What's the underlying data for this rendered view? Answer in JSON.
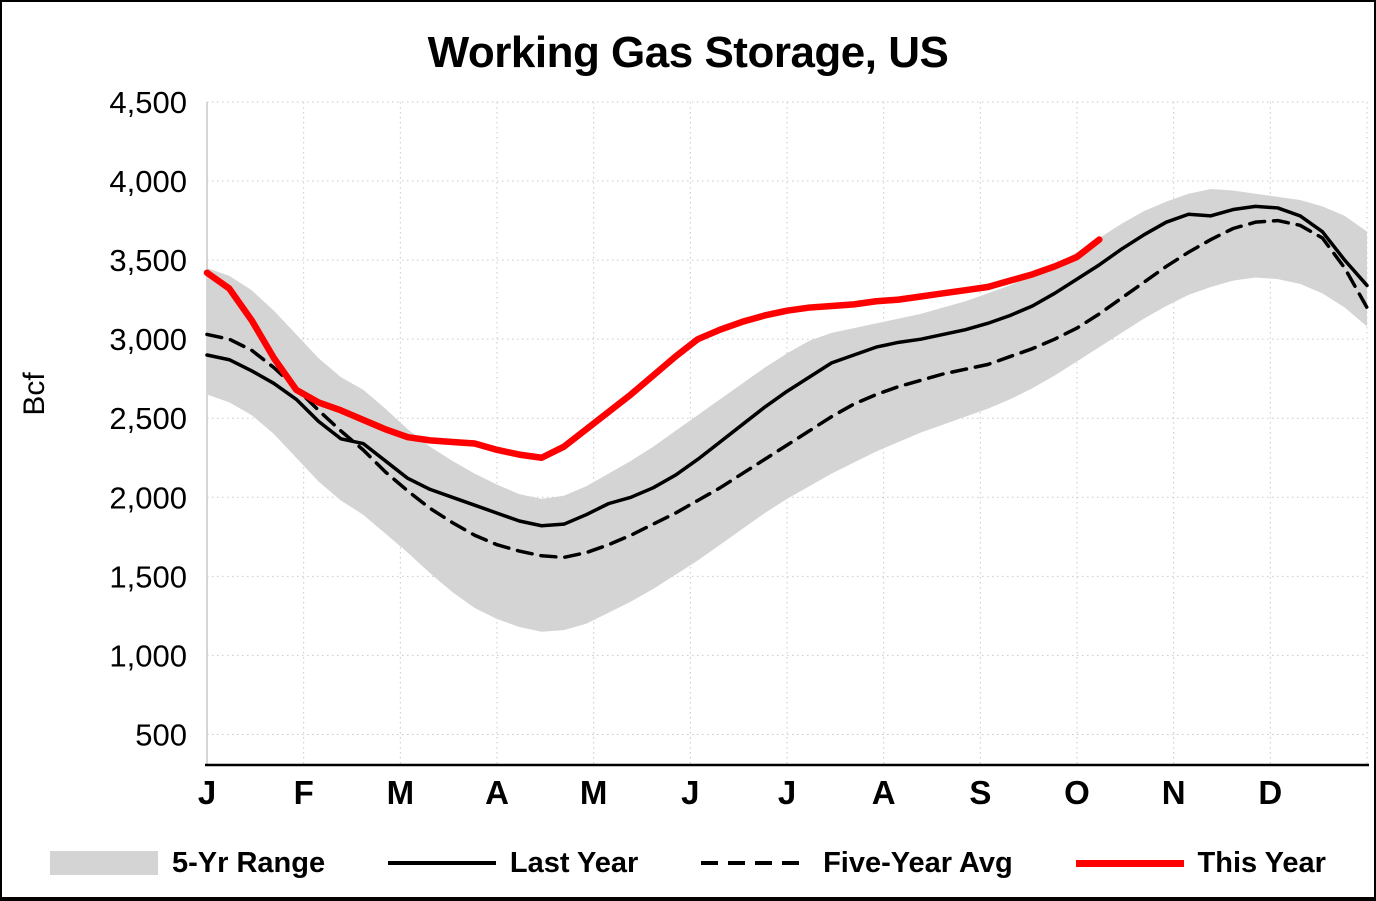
{
  "title": "Working Gas Storage, US",
  "ylabel": "Bcf",
  "legend": [
    {
      "label": "5-Yr Range",
      "swatch": "band",
      "color": "#d4d4d4"
    },
    {
      "label": "Last Year",
      "swatch": "solid-line",
      "color": "#000000"
    },
    {
      "label": "Five-Year Avg",
      "swatch": "dashed-line",
      "color": "#000000"
    },
    {
      "label": "This Year",
      "swatch": "thick-line",
      "color": "#ff0000"
    }
  ],
  "chart_data": {
    "type": "line",
    "title": "Working Gas Storage, US",
    "xlabel": "",
    "ylabel": "Bcf",
    "ylim": [
      500,
      4500
    ],
    "ytick_step": 500,
    "ytick_labels": [
      "500",
      "1,000",
      "1,500",
      "2,000",
      "2,500",
      "3,000",
      "3,500",
      "4,000",
      "4,500"
    ],
    "month_labels": [
      "J",
      "F",
      "M",
      "A",
      "M",
      "J",
      "J",
      "A",
      "S",
      "O",
      "N",
      "D"
    ],
    "x_unit": "week-of-year",
    "weeks_per_year": 52,
    "grid": true,
    "legend_position": "bottom",
    "band": {
      "name": "5-Yr Range",
      "color": "#d4d4d4",
      "upper": [
        3450,
        3400,
        3310,
        3180,
        3030,
        2880,
        2760,
        2680,
        2560,
        2430,
        2320,
        2230,
        2150,
        2080,
        2020,
        1990,
        2010,
        2070,
        2150,
        2230,
        2320,
        2420,
        2520,
        2620,
        2720,
        2820,
        2910,
        2990,
        3040,
        3070,
        3100,
        3130,
        3160,
        3200,
        3240,
        3290,
        3340,
        3400,
        3470,
        3550,
        3640,
        3730,
        3810,
        3870,
        3920,
        3950,
        3940,
        3920,
        3900,
        3880,
        3840,
        3780,
        3680
      ],
      "lower": [
        2650,
        2600,
        2520,
        2400,
        2250,
        2100,
        1980,
        1890,
        1770,
        1650,
        1520,
        1400,
        1300,
        1230,
        1180,
        1150,
        1160,
        1200,
        1270,
        1340,
        1420,
        1510,
        1600,
        1700,
        1800,
        1900,
        1990,
        2070,
        2150,
        2220,
        2290,
        2350,
        2410,
        2460,
        2510,
        2560,
        2620,
        2690,
        2770,
        2860,
        2950,
        3040,
        3130,
        3210,
        3280,
        3330,
        3370,
        3390,
        3380,
        3350,
        3290,
        3200,
        3080
      ]
    },
    "series": [
      {
        "name": "Last Year",
        "style": "solid",
        "color": "#000000",
        "width": 3.5,
        "values": [
          2900,
          2870,
          2800,
          2720,
          2620,
          2480,
          2370,
          2340,
          2230,
          2120,
          2050,
          2000,
          1950,
          1900,
          1850,
          1820,
          1830,
          1890,
          1960,
          2000,
          2060,
          2140,
          2240,
          2350,
          2460,
          2570,
          2670,
          2760,
          2850,
          2900,
          2950,
          2980,
          3000,
          3030,
          3060,
          3100,
          3150,
          3210,
          3290,
          3380,
          3470,
          3570,
          3660,
          3740,
          3790,
          3780,
          3820,
          3840,
          3830,
          3780,
          3680,
          3500,
          3340
        ]
      },
      {
        "name": "Five-Year Avg",
        "style": "dashed",
        "color": "#000000",
        "width": 3.5,
        "dash": "15 9",
        "values": [
          3030,
          3000,
          2930,
          2820,
          2690,
          2550,
          2420,
          2300,
          2160,
          2040,
          1930,
          1840,
          1760,
          1700,
          1660,
          1630,
          1620,
          1650,
          1700,
          1760,
          1830,
          1900,
          1980,
          2060,
          2150,
          2240,
          2330,
          2420,
          2510,
          2590,
          2650,
          2700,
          2740,
          2780,
          2810,
          2840,
          2890,
          2940,
          3000,
          3070,
          3160,
          3260,
          3360,
          3460,
          3550,
          3630,
          3700,
          3740,
          3750,
          3720,
          3640,
          3450,
          3200
        ]
      },
      {
        "name": "This Year",
        "style": "solid",
        "color": "#ff0000",
        "width": 6.5,
        "values": [
          3420,
          3320,
          3120,
          2880,
          2680,
          2600,
          2550,
          2490,
          2430,
          2380,
          2360,
          2350,
          2340,
          2300,
          2270,
          2250,
          2320,
          2430,
          2540,
          2650,
          2770,
          2890,
          3000,
          3060,
          3110,
          3150,
          3180,
          3200,
          3210,
          3220,
          3240,
          3250,
          3270,
          3290,
          3310,
          3330,
          3370,
          3410,
          3460,
          3520,
          3630
        ]
      }
    ]
  }
}
